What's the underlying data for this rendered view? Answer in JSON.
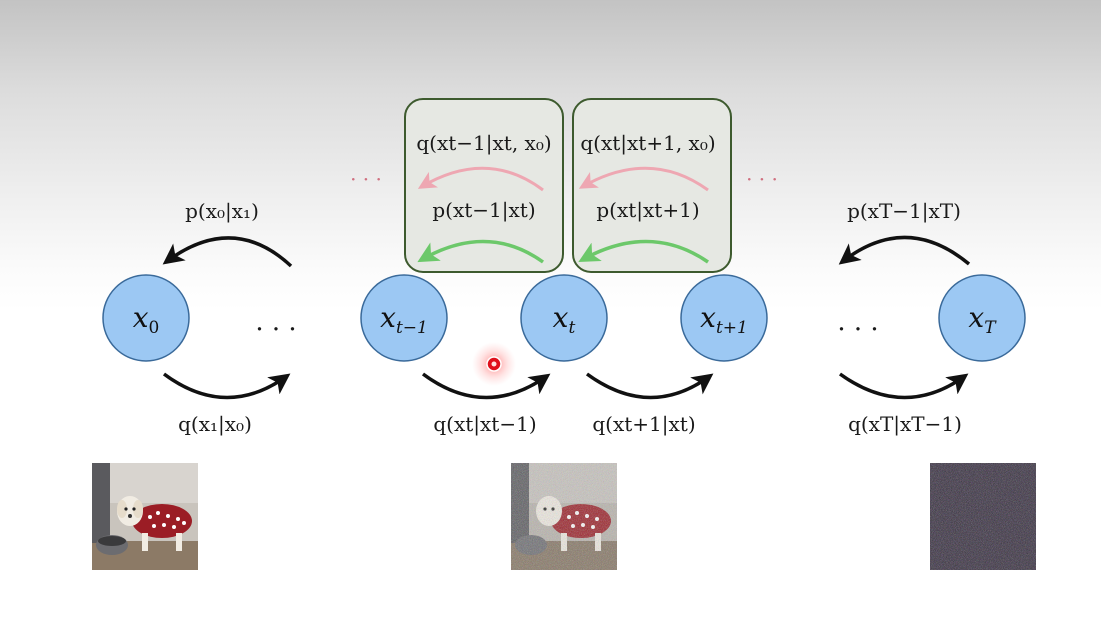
{
  "nodes": [
    {
      "id": "x0",
      "base": "x",
      "sub": "0"
    },
    {
      "id": "xt_minus_1",
      "base": "x",
      "sub": "t−1"
    },
    {
      "id": "xt",
      "base": "x",
      "sub": "t"
    },
    {
      "id": "xt_plus_1",
      "base": "x",
      "sub": "t+1"
    },
    {
      "id": "xT",
      "base": "x",
      "sub": "T"
    }
  ],
  "ellipsis": "· · ·",
  "top_dots": "· · ·",
  "reverse_labels": {
    "p_x0_x1": "p(x₀|x₁)",
    "p_xTm1_xT": "p(xT−1|xT)"
  },
  "forward_labels": {
    "q_x1_x0": "q(x₁|x₀)",
    "q_xt_xtm1": "q(xt|xt−1)",
    "q_xtp1_xt": "q(xt+1|xt)",
    "q_xT_xTm1": "q(xT|xT−1)"
  },
  "boxes": [
    {
      "q_label": "q(xt−1|xt, x₀)",
      "p_label": "p(xt−1|xt)"
    },
    {
      "q_label": "q(xt|xt+1, x₀)",
      "p_label": "p(xt|xt+1)"
    }
  ],
  "images": [
    {
      "name": "clean-dog-image",
      "noise": 0
    },
    {
      "name": "noisy-dog-image",
      "noise": 0.5
    },
    {
      "name": "pure-noise-image",
      "noise": 1
    }
  ],
  "colors": {
    "node_fill": "#9cc8f3",
    "node_stroke": "#3a6a9a",
    "box_fill": "#e6e8e3",
    "box_stroke": "#3d5a2e",
    "arrow_black": "#111111",
    "arrow_pink": "#eea7b2",
    "arrow_green": "#6cc86a",
    "pointer": "#e0101c"
  }
}
